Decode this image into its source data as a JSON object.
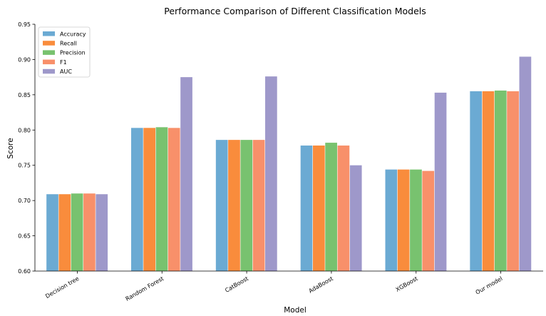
{
  "chart_data": {
    "type": "bar",
    "title": "Performance Comparison of Different Classification Models",
    "xlabel": "Model",
    "ylabel": "Score",
    "ylim": [
      0.6,
      0.95
    ],
    "yticks": [
      "0.60",
      "0.65",
      "0.70",
      "0.75",
      "0.80",
      "0.85",
      "0.90",
      "0.95"
    ],
    "categories": [
      "Decision tree",
      "Random Forest",
      "CatBoost",
      "AdaBoost",
      "XGBoost",
      "Our model"
    ],
    "series": [
      {
        "name": "Accuracy",
        "color": "#6baad3",
        "values": [
          0.709,
          0.803,
          0.786,
          0.778,
          0.744,
          0.855
        ]
      },
      {
        "name": "Recall",
        "color": "#f98c3c",
        "values": [
          0.709,
          0.803,
          0.786,
          0.778,
          0.744,
          0.855
        ]
      },
      {
        "name": "Precision",
        "color": "#78c26f",
        "values": [
          0.71,
          0.804,
          0.786,
          0.782,
          0.744,
          0.856
        ]
      },
      {
        "name": "F1",
        "color": "#f8906a",
        "values": [
          0.71,
          0.803,
          0.786,
          0.778,
          0.742,
          0.855
        ]
      },
      {
        "name": "AUC",
        "color": "#9e98ca",
        "values": [
          0.709,
          0.875,
          0.876,
          0.75,
          0.853,
          0.904
        ]
      }
    ],
    "legend_position": "top-left",
    "grid": false
  }
}
